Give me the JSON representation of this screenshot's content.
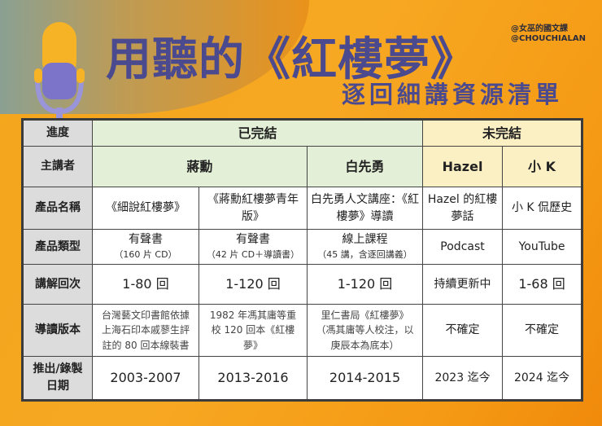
{
  "header": {
    "title": "用聽的《紅樓夢》",
    "subtitle": "逐回細講資源清單",
    "handles": [
      "@女巫的國文課",
      "@CHOUCHIALAN"
    ]
  },
  "colors": {
    "title": "#4b4a8f",
    "completed": "#e3f0d7",
    "ongoing": "#fbefc4",
    "label": "#dcdcdc",
    "background": "#f5a21a"
  },
  "icons": {
    "mic": "microphone-icon"
  },
  "table": {
    "row_labels": [
      "進度",
      "主講者",
      "產品名稱",
      "產品類型",
      "講解回次",
      "導讀版本",
      "推出/錄製日期"
    ],
    "status": {
      "completed": "已完結",
      "ongoing": "未完結"
    },
    "columns": [
      {
        "speaker": "蔣勳",
        "name": "《細說紅樓夢》",
        "type": "有聲書",
        "type_note": "（160 片 CD）",
        "chapters": "1-80 回",
        "edition": "台灣藝文印書館依據上海石印本戚蓼生評註的 80 回本線裝書",
        "date": "2003-2007"
      },
      {
        "speaker": "蔣勳",
        "name": "《蔣勳紅樓夢青年版》",
        "type": "有聲書",
        "type_note": "（42 片 CD＋導讀書）",
        "chapters": "1-120 回",
        "edition": "1982 年馮其庸等重校 120 回本《紅樓夢》",
        "date": "2013-2016"
      },
      {
        "speaker": "白先勇",
        "name": "白先勇人文講座：《紅樓夢》導讀",
        "type": "線上課程",
        "type_note": "（45 講，含逐回講義）",
        "chapters": "1-120 回",
        "edition": "里仁書局《紅樓夢》（馮其庸等人校注，以庚辰本為底本）",
        "date": "2014-2015"
      },
      {
        "speaker": "Hazel",
        "name": "Hazel 的紅樓夢話",
        "type": "Podcast",
        "type_note": "",
        "chapters": "持續更新中",
        "edition": "不確定",
        "date": "2023 迄今"
      },
      {
        "speaker": "小 K",
        "name": "小 K 侃歷史",
        "type": "YouTube",
        "type_note": "",
        "chapters": "1-68 回",
        "edition": "不確定",
        "date": "2024 迄今"
      }
    ]
  }
}
